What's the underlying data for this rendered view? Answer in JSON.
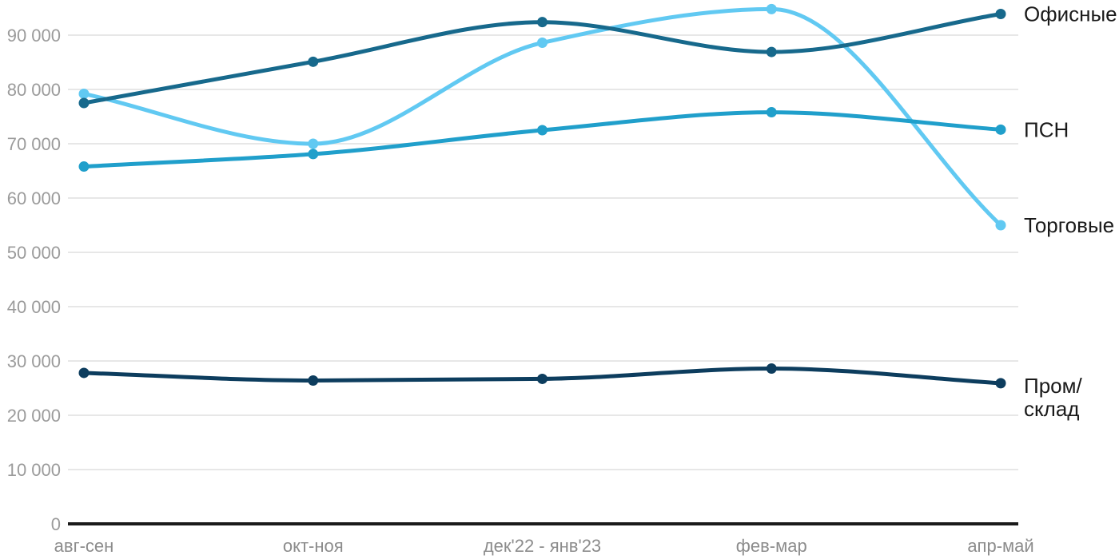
{
  "chart_data": {
    "type": "line",
    "title": "",
    "x_categories": [
      "авг-сен",
      "окт-ноя",
      "дек'22 - янв'23",
      "фев-мар",
      "апр-май"
    ],
    "y_ticks": [
      {
        "value": 90000,
        "label": "90 000"
      },
      {
        "value": 80000,
        "label": "80 000"
      },
      {
        "value": 70000,
        "label": "70 000"
      },
      {
        "value": 60000,
        "label": "60 000"
      },
      {
        "value": 50000,
        "label": "50 000"
      },
      {
        "value": 40000,
        "label": "40 000"
      },
      {
        "value": 30000,
        "label": "30 000"
      },
      {
        "value": 20000,
        "label": "20 000"
      },
      {
        "value": 10000,
        "label": "10 000"
      },
      {
        "value": 0,
        "label": "0"
      }
    ],
    "ylim": [
      0,
      95500
    ],
    "grid": true,
    "curve": "monotone",
    "legend_position": "right-inline",
    "series": [
      {
        "name": "Офисные",
        "label_lines": [
          "Офисные"
        ],
        "color": "#17698C",
        "values": [
          77500,
          85100,
          92400,
          86900,
          93900
        ]
      },
      {
        "name": "ПСН",
        "label_lines": [
          "ПСН"
        ],
        "color": "#209FCB",
        "values": [
          65800,
          68100,
          72500,
          75800,
          72600
        ]
      },
      {
        "name": "Торговые",
        "label_lines": [
          "Торговые"
        ],
        "color": "#61C9F2",
        "values": [
          79200,
          70000,
          88600,
          94800,
          55000
        ]
      },
      {
        "name": "Пром/склад",
        "label_lines": [
          "Пром/",
          "склад"
        ],
        "color": "#0D3D5E",
        "values": [
          27800,
          26400,
          26700,
          28600,
          25900
        ]
      }
    ],
    "colors": {
      "y_tick_label": "#9B9B9B",
      "x_tick_label": "#8C8C8C",
      "gridline": "#E7E7E7",
      "axis_line": "#1A1A1A",
      "series_label": "#1A1A1A",
      "background": "#FFFFFF"
    }
  }
}
